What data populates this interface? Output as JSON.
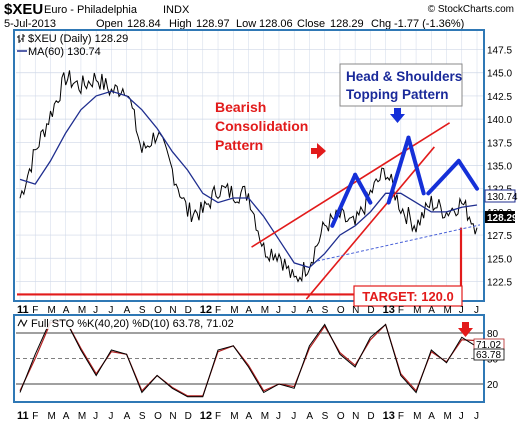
{
  "header": {
    "symbol": "$XEU",
    "name": "Euro - Philadelphia",
    "exchange": "INDX",
    "watermark": "© StockCharts.com",
    "date": "5-Jul-2013",
    "open_label": "Open",
    "open": "128.84",
    "high_label": "High",
    "high": "128.97",
    "low_label": "Low",
    "low": "128.06",
    "close_label": "Close",
    "close": "128.29",
    "chg_label": "Chg",
    "chg": "-1.77 (-1.36%)"
  },
  "colors": {
    "frame": "#2f78b5",
    "price": "#000000",
    "ma": "#1f2e8f",
    "annotation_red": "#e21b1b",
    "pattern_blue": "#1530d8",
    "neckline": "#4a62d8",
    "sto_k": "#000000",
    "sto_d": "#b22222",
    "grid": "#cfd8e8",
    "title_blue": "#1a2a9a",
    "panel_bg": "#ffffff"
  },
  "legend": {
    "price_label": "$XEU (Daily) 128.29",
    "ma_label": "MA(60) 130.74"
  },
  "price_axis": {
    "ticks": [
      "147.5",
      "145.0",
      "142.5",
      "140.0",
      "137.5",
      "135.0",
      "132.5",
      "130.0",
      "127.5",
      "125.0",
      "122.5"
    ]
  },
  "value_tags": {
    "ma": "130.74",
    "close": "128.29"
  },
  "annotations": {
    "bearish": [
      "Bearish",
      "Consolidation",
      "Pattern"
    ],
    "hs": [
      "Head & Shoulders",
      "Topping Pattern"
    ],
    "target": "TARGET: 120.0"
  },
  "time_axis": {
    "labels": [
      "11",
      "F",
      "M",
      "A",
      "M",
      "J",
      "J",
      "A",
      "S",
      "O",
      "N",
      "D",
      "12",
      "F",
      "M",
      "A",
      "M",
      "J",
      "J",
      "A",
      "S",
      "O",
      "N",
      "D",
      "13",
      "F",
      "M",
      "A",
      "M",
      "J",
      "J"
    ]
  },
  "sto": {
    "label": "Full STO %K(40,20) %D(10) 63.78, 71.02",
    "ticks": [
      "80",
      "50",
      "20"
    ],
    "tag_d": "71.02",
    "tag_k": "63.78"
  },
  "chart_data": [
    {
      "type": "line",
      "title": "$XEU Euro - Philadelphia INDX",
      "period": "Daily",
      "x": [
        "2011-01",
        "2011-02",
        "2011-03",
        "2011-04",
        "2011-05",
        "2011-06",
        "2011-07",
        "2011-08",
        "2011-09",
        "2011-10",
        "2011-11",
        "2011-12",
        "2012-01",
        "2012-02",
        "2012-03",
        "2012-04",
        "2012-05",
        "2012-06",
        "2012-07",
        "2012-08",
        "2012-09",
        "2012-10",
        "2012-11",
        "2012-12",
        "2013-01",
        "2013-02",
        "2013-03",
        "2013-04",
        "2013-05",
        "2013-06",
        "2013-07"
      ],
      "series": [
        {
          "name": "$XEU (Daily) 128.29",
          "values": [
            131.5,
            136.5,
            140.5,
            144.5,
            143.5,
            144.5,
            143.0,
            143.5,
            136.5,
            138.5,
            134.5,
            130.0,
            130.0,
            132.5,
            132.0,
            132.0,
            126.0,
            125.5,
            122.5,
            124.5,
            128.5,
            129.5,
            128.5,
            132.0,
            134.5,
            130.5,
            128.5,
            131.0,
            130.0,
            131.0,
            128.29
          ]
        },
        {
          "name": "MA(60) 130.74",
          "values": [
            133.5,
            133.0,
            135.5,
            138.5,
            141.0,
            142.5,
            143.0,
            142.5,
            141.0,
            139.0,
            136.5,
            134.5,
            132.0,
            131.0,
            131.5,
            131.5,
            129.5,
            127.0,
            124.5,
            124.0,
            125.5,
            127.5,
            128.5,
            130.0,
            132.0,
            132.0,
            131.0,
            130.0,
            130.0,
            130.5,
            130.74
          ]
        }
      ],
      "ylim": [
        120.5,
        149.5
      ],
      "yticks": [
        147.5,
        145.0,
        142.5,
        140.0,
        137.5,
        135.0,
        132.5,
        130.0,
        127.5,
        125.0,
        122.5
      ],
      "grid": true,
      "legend": "top-left"
    },
    {
      "type": "line",
      "title": "Full STO %K(40,20) %D(10) 63.78, 71.02",
      "x": [
        "2011-01",
        "2011-02",
        "2011-03",
        "2011-04",
        "2011-05",
        "2011-06",
        "2011-07",
        "2011-08",
        "2011-09",
        "2011-10",
        "2011-11",
        "2011-12",
        "2012-01",
        "2012-02",
        "2012-03",
        "2012-04",
        "2012-05",
        "2012-06",
        "2012-07",
        "2012-08",
        "2012-09",
        "2012-10",
        "2012-11",
        "2012-12",
        "2013-01",
        "2013-02",
        "2013-03",
        "2013-04",
        "2013-05",
        "2013-06",
        "2013-07"
      ],
      "series": [
        {
          "name": "%K",
          "values": [
            10,
            55,
            95,
            95,
            60,
            30,
            60,
            55,
            10,
            30,
            15,
            5,
            5,
            60,
            65,
            40,
            10,
            20,
            15,
            65,
            90,
            55,
            40,
            75,
            90,
            30,
            10,
            60,
            45,
            75,
            63.78
          ]
        },
        {
          "name": "%D",
          "values": [
            12,
            50,
            92,
            95,
            62,
            32,
            58,
            55,
            12,
            30,
            16,
            6,
            6,
            58,
            65,
            42,
            12,
            20,
            17,
            62,
            88,
            57,
            42,
            72,
            90,
            32,
            12,
            58,
            46,
            72,
            71.02
          ]
        }
      ],
      "ylim": [
        0,
        100
      ],
      "yticks": [
        80,
        50,
        20
      ],
      "grid": true
    }
  ]
}
